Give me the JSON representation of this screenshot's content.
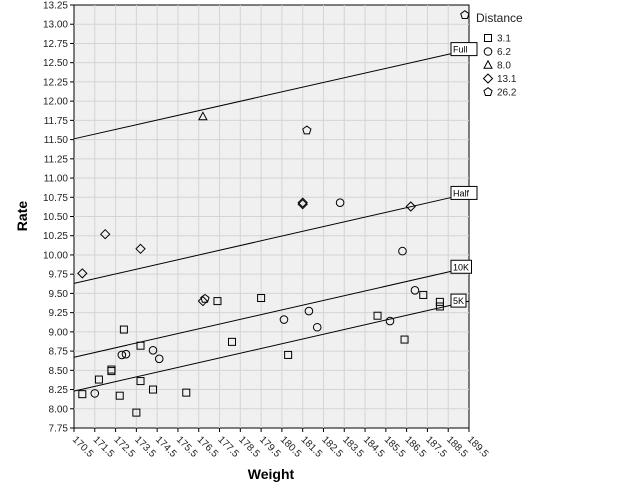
{
  "chart_data": {
    "type": "scatter",
    "xlabel": "Weight",
    "ylabel": "Rate",
    "xlim": [
      170.5,
      189.5
    ],
    "ylim": [
      7.75,
      13.25
    ],
    "x_ticks": [
      "170.5",
      "171.5",
      "172.5",
      "173.5",
      "174.5",
      "175.5",
      "176.5",
      "177.5",
      "178.5",
      "179.5",
      "180.5",
      "181.5",
      "182.5",
      "183.5",
      "184.5",
      "185.5",
      "186.5",
      "187.5",
      "188.5",
      "189.5"
    ],
    "y_ticks": [
      "7.75",
      "8.00",
      "8.25",
      "8.50",
      "8.75",
      "9.00",
      "9.25",
      "9.50",
      "9.75",
      "10.00",
      "10.25",
      "10.50",
      "10.75",
      "11.00",
      "11.25",
      "11.50",
      "11.75",
      "12.00",
      "12.25",
      "12.50",
      "12.75",
      "13.00",
      "13.25"
    ],
    "grid": true,
    "legend_title": "Distance",
    "legend_position": "right",
    "series": [
      {
        "name": "3.1",
        "marker": "square",
        "points": [
          [
            170.9,
            8.19
          ],
          [
            171.7,
            8.38
          ],
          [
            172.3,
            8.49
          ],
          [
            172.3,
            8.51
          ],
          [
            172.7,
            8.17
          ],
          [
            172.9,
            9.03
          ],
          [
            173.5,
            7.95
          ],
          [
            173.7,
            8.36
          ],
          [
            173.7,
            8.82
          ],
          [
            174.3,
            8.25
          ],
          [
            175.9,
            8.21
          ],
          [
            177.4,
            9.4
          ],
          [
            178.1,
            8.87
          ],
          [
            179.5,
            9.44
          ],
          [
            180.8,
            8.7
          ],
          [
            185.1,
            9.21
          ],
          [
            186.4,
            8.9
          ],
          [
            187.3,
            9.48
          ],
          [
            188.1,
            9.33
          ],
          [
            188.1,
            9.39
          ]
        ]
      },
      {
        "name": "6.2",
        "marker": "circle",
        "points": [
          [
            171.5,
            8.2
          ],
          [
            172.8,
            8.7
          ],
          [
            173.0,
            8.71
          ],
          [
            174.3,
            8.76
          ],
          [
            174.6,
            8.65
          ],
          [
            180.6,
            9.16
          ],
          [
            181.8,
            9.27
          ],
          [
            182.2,
            9.06
          ],
          [
            183.3,
            10.68
          ],
          [
            185.7,
            9.14
          ],
          [
            186.3,
            10.05
          ],
          [
            186.9,
            9.54
          ]
        ]
      },
      {
        "name": "8.0",
        "marker": "triangle",
        "points": [
          [
            176.7,
            11.8
          ]
        ]
      },
      {
        "name": "13.1",
        "marker": "diamond",
        "points": [
          [
            170.9,
            9.76
          ],
          [
            172.0,
            10.27
          ],
          [
            173.7,
            10.08
          ],
          [
            176.7,
            9.4
          ],
          [
            181.5,
            10.66
          ],
          [
            181.5,
            10.68
          ],
          [
            186.7,
            10.63
          ]
        ]
      },
      {
        "name": "26.2",
        "marker": "pentagon",
        "points": [
          [
            176.8,
            9.43
          ],
          [
            181.7,
            11.62
          ],
          [
            189.3,
            13.12
          ]
        ]
      }
    ],
    "reference_lines": [
      {
        "label": "Full",
        "x0": 170.5,
        "y0": 11.51,
        "x1": 189.5,
        "y1": 12.67
      },
      {
        "label": "Half",
        "x0": 170.5,
        "y0": 9.63,
        "x1": 189.5,
        "y1": 10.8
      },
      {
        "label": "10K",
        "x0": 170.5,
        "y0": 8.67,
        "x1": 189.5,
        "y1": 9.84
      },
      {
        "label": "5K",
        "x0": 170.5,
        "y0": 8.23,
        "x1": 189.5,
        "y1": 9.4
      }
    ],
    "colors": {
      "plot_bg": "#f0f0f0",
      "grid": "#d4d4d4",
      "line": "#000000"
    }
  }
}
